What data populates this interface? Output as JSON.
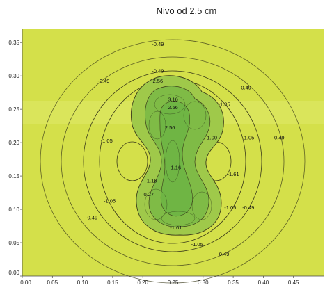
{
  "chart_data": {
    "type": "contour",
    "title": "Nivo od 2.5 cm",
    "xlabel": "",
    "ylabel": "",
    "xlim": [
      0.0,
      0.5
    ],
    "ylim": [
      0.0,
      0.37
    ],
    "x_ticks": [
      "0.00",
      "0.05",
      "0.10",
      "0.15",
      "0.20",
      "0.25",
      "0.30",
      "0.35",
      "0.40",
      "0.45"
    ],
    "x_tick_values": [
      0.0,
      0.05,
      0.1,
      0.15,
      0.2,
      0.25,
      0.3,
      0.35,
      0.4,
      0.45
    ],
    "y_ticks": [
      "0.00",
      "0.05",
      "0.10",
      "0.15",
      "0.20",
      "0.25",
      "0.30",
      "0.35"
    ],
    "y_tick_values": [
      0.0,
      0.05,
      0.1,
      0.15,
      0.2,
      0.25,
      0.3,
      0.35
    ],
    "grid": false,
    "colors": {
      "background": "#d4e04a",
      "inner_fill": "#9fc94a",
      "core_fill": "#6fb544",
      "contour_line": "#3a3a1a"
    },
    "contour_levels": [
      "0.49",
      "-0.49",
      "-1.05",
      "-1.61",
      "1.00",
      "2.56",
      "3.16"
    ],
    "contour_labels": [
      {
        "text": "-0.49",
        "x": 0.225,
        "y": 0.345
      },
      {
        "text": "-0.49",
        "x": 0.135,
        "y": 0.29
      },
      {
        "text": "-0.49",
        "x": 0.37,
        "y": 0.28
      },
      {
        "text": "-0.49",
        "x": 0.425,
        "y": 0.205
      },
      {
        "text": "-0.49",
        "x": 0.115,
        "y": 0.085
      },
      {
        "text": "-0.49",
        "x": 0.375,
        "y": 0.1
      },
      {
        "text": "0.49",
        "x": 0.335,
        "y": 0.03
      },
      {
        "text": "-1.05",
        "x": 0.335,
        "y": 0.255
      },
      {
        "text": "-1.05",
        "x": 0.14,
        "y": 0.2
      },
      {
        "text": "-1.05",
        "x": 0.375,
        "y": 0.205
      },
      {
        "text": "-1.05",
        "x": 0.145,
        "y": 0.11
      },
      {
        "text": "-1.05",
        "x": 0.345,
        "y": 0.1
      },
      {
        "text": "-1.05",
        "x": 0.29,
        "y": 0.045
      },
      {
        "text": "-1.61",
        "x": 0.35,
        "y": 0.15
      },
      {
        "text": "-1.61",
        "x": 0.255,
        "y": 0.07
      },
      {
        "text": "1.00",
        "x": 0.315,
        "y": 0.205
      },
      {
        "text": "-0.49",
        "x": 0.225,
        "y": 0.305
      },
      {
        "text": "2.56",
        "x": 0.225,
        "y": 0.29
      },
      {
        "text": "3.16",
        "x": 0.25,
        "y": 0.262
      },
      {
        "text": "2.56",
        "x": 0.25,
        "y": 0.25
      },
      {
        "text": "2.56",
        "x": 0.245,
        "y": 0.22
      },
      {
        "text": "1.16",
        "x": 0.215,
        "y": 0.14
      },
      {
        "text": "1.16",
        "x": 0.255,
        "y": 0.16
      },
      {
        "text": "0.27",
        "x": 0.21,
        "y": 0.12
      }
    ]
  }
}
